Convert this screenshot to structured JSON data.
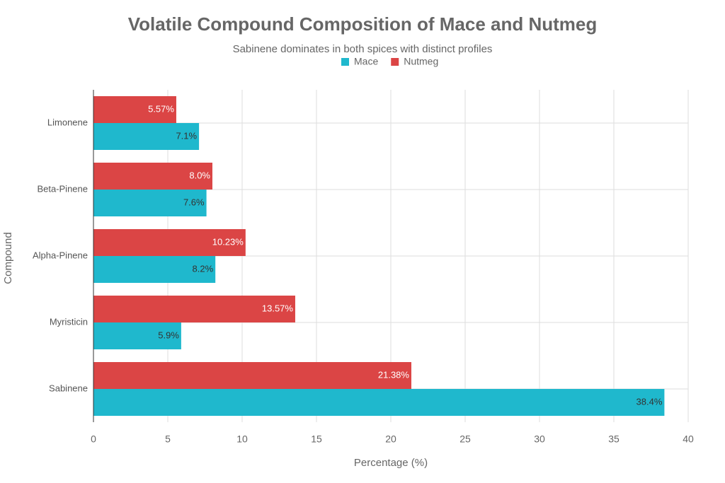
{
  "chart_data": {
    "type": "bar",
    "orientation": "horizontal",
    "title": "Volatile Compound Composition of Mace and Nutmeg",
    "subtitle": "Sabinene dominates in both spices with distinct profiles",
    "x_label": "Percentage (%)",
    "y_label": "Compound",
    "categories": [
      "Sabinene",
      "Myristicin",
      "Alpha-Pinene",
      "Beta-Pinene",
      "Limonene"
    ],
    "series": [
      {
        "name": "Mace",
        "color": "#1fb8cd",
        "values": [
          38.4,
          5.9,
          8.2,
          7.6,
          7.1
        ],
        "value_labels": [
          "38.4%",
          "5.9%",
          "8.2%",
          "7.6%",
          "7.1%"
        ]
      },
      {
        "name": "Nutmeg",
        "color": "#db4545",
        "values": [
          21.38,
          13.57,
          10.23,
          8.0,
          5.57
        ],
        "value_labels": [
          "21.38%",
          "13.57%",
          "10.23%",
          "8.0%",
          "5.57%"
        ]
      }
    ],
    "xlim": [
      0,
      40
    ],
    "xticks": [
      0,
      5,
      10,
      15,
      20,
      25,
      30,
      35,
      40
    ],
    "grid": true,
    "legend": "top"
  }
}
